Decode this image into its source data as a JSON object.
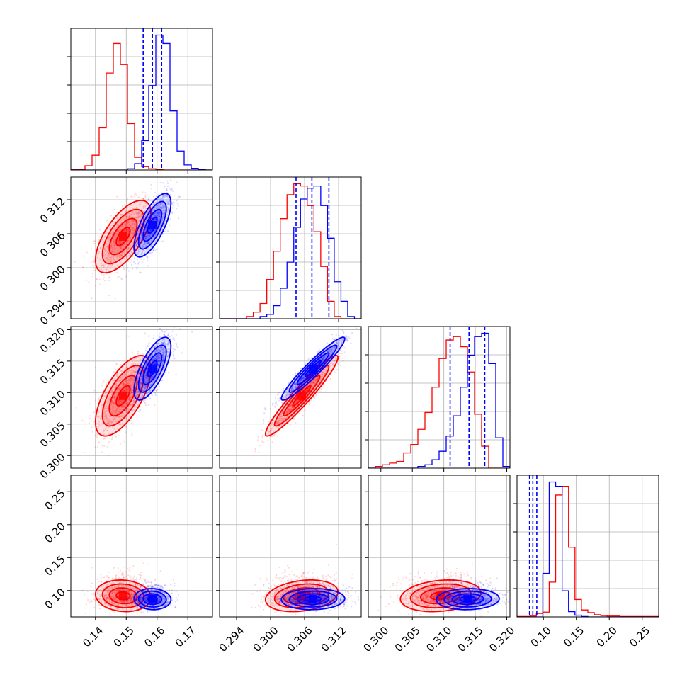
{
  "chart_data": {
    "type": "corner",
    "title": "",
    "grid": true,
    "colors": {
      "red": "#ff0000",
      "blue": "#0000ff"
    },
    "parameters": [
      {
        "range": [
          0.132,
          0.178
        ],
        "ticks": [
          "0.14",
          "0.15",
          "0.16",
          "0.17"
        ]
      },
      {
        "range": [
          0.291,
          0.316
        ],
        "ticks": [
          "0.294",
          "0.300",
          "0.306",
          "0.312"
        ]
      },
      {
        "range": [
          0.298,
          0.3205
        ],
        "ticks": [
          "0.300",
          "0.305",
          "0.310",
          "0.315",
          "0.320"
        ]
      },
      {
        "range": [
          0.06,
          0.275
        ],
        "ticks": [
          "0.10",
          "0.15",
          "0.20",
          "0.25"
        ]
      }
    ],
    "series": [
      {
        "color": "red",
        "means": [
          0.149,
          0.3055,
          0.3095,
          0.092
        ],
        "sigmas": [
          0.0045,
          0.0032,
          0.0032,
          0.012
        ],
        "correlations": {
          "1-0": 0.65,
          "2-0": 0.65,
          "2-1": 0.95,
          "3-0": -0.1,
          "3-1": 0.25,
          "3-2": 0.2
        },
        "histograms": [
          [
            1,
            2,
            10,
            35,
            100,
            230,
            300,
            250,
            110,
            30,
            8,
            3,
            1,
            0,
            0,
            0,
            0,
            0,
            0,
            0
          ],
          [
            0,
            0,
            0,
            0,
            1,
            3,
            7,
            18,
            31,
            46,
            57,
            62,
            61,
            52,
            40,
            24,
            8,
            1,
            0,
            0,
            0
          ],
          [
            0,
            1,
            2,
            3,
            4,
            9,
            14,
            23,
            33,
            48,
            65,
            76,
            78,
            72,
            57,
            32,
            13,
            0,
            0,
            0
          ],
          [
            1,
            1,
            2,
            8,
            11,
            80,
            280,
            300,
            160,
            40,
            16,
            10,
            5,
            3,
            2,
            2,
            1,
            1,
            1,
            1,
            1,
            1
          ]
        ]
      },
      {
        "color": "blue",
        "means": [
          0.1585,
          0.3075,
          0.3138,
          0.087
        ],
        "sigmas": [
          0.003,
          0.0028,
          0.0025,
          0.008
        ],
        "correlations": {
          "1-0": 0.7,
          "2-0": 0.7,
          "2-1": 0.95,
          "3-0": -0.05,
          "3-1": 0.05,
          "3-2": 0.05
        },
        "quantiles": [
          [
            0.1555,
            0.1585,
            0.1615
          ],
          [
            0.3045,
            0.3073,
            0.3103
          ],
          [
            0.311,
            0.314,
            0.3165
          ],
          [
            0.079,
            0.084,
            0.09
          ]
        ],
        "histograms": [
          [
            0,
            0,
            0,
            0,
            0,
            0,
            0,
            0,
            3,
            15,
            70,
            200,
            320,
            300,
            140,
            45,
            12,
            4,
            1,
            0
          ],
          [
            0,
            0,
            0,
            0,
            0,
            0,
            1,
            2,
            6,
            14,
            26,
            42,
            55,
            60,
            61,
            52,
            37,
            17,
            8,
            1,
            0
          ],
          [
            0,
            0,
            0,
            0,
            0,
            0,
            0,
            1,
            2,
            5,
            10,
            19,
            31,
            48,
            67,
            78,
            80,
            62,
            18,
            1
          ],
          [
            0,
            0,
            0,
            0,
            100,
            310,
            300,
            60,
            12,
            4,
            1,
            0,
            0,
            0,
            0,
            0,
            0,
            0,
            0,
            0,
            0,
            0
          ]
        ]
      }
    ]
  }
}
